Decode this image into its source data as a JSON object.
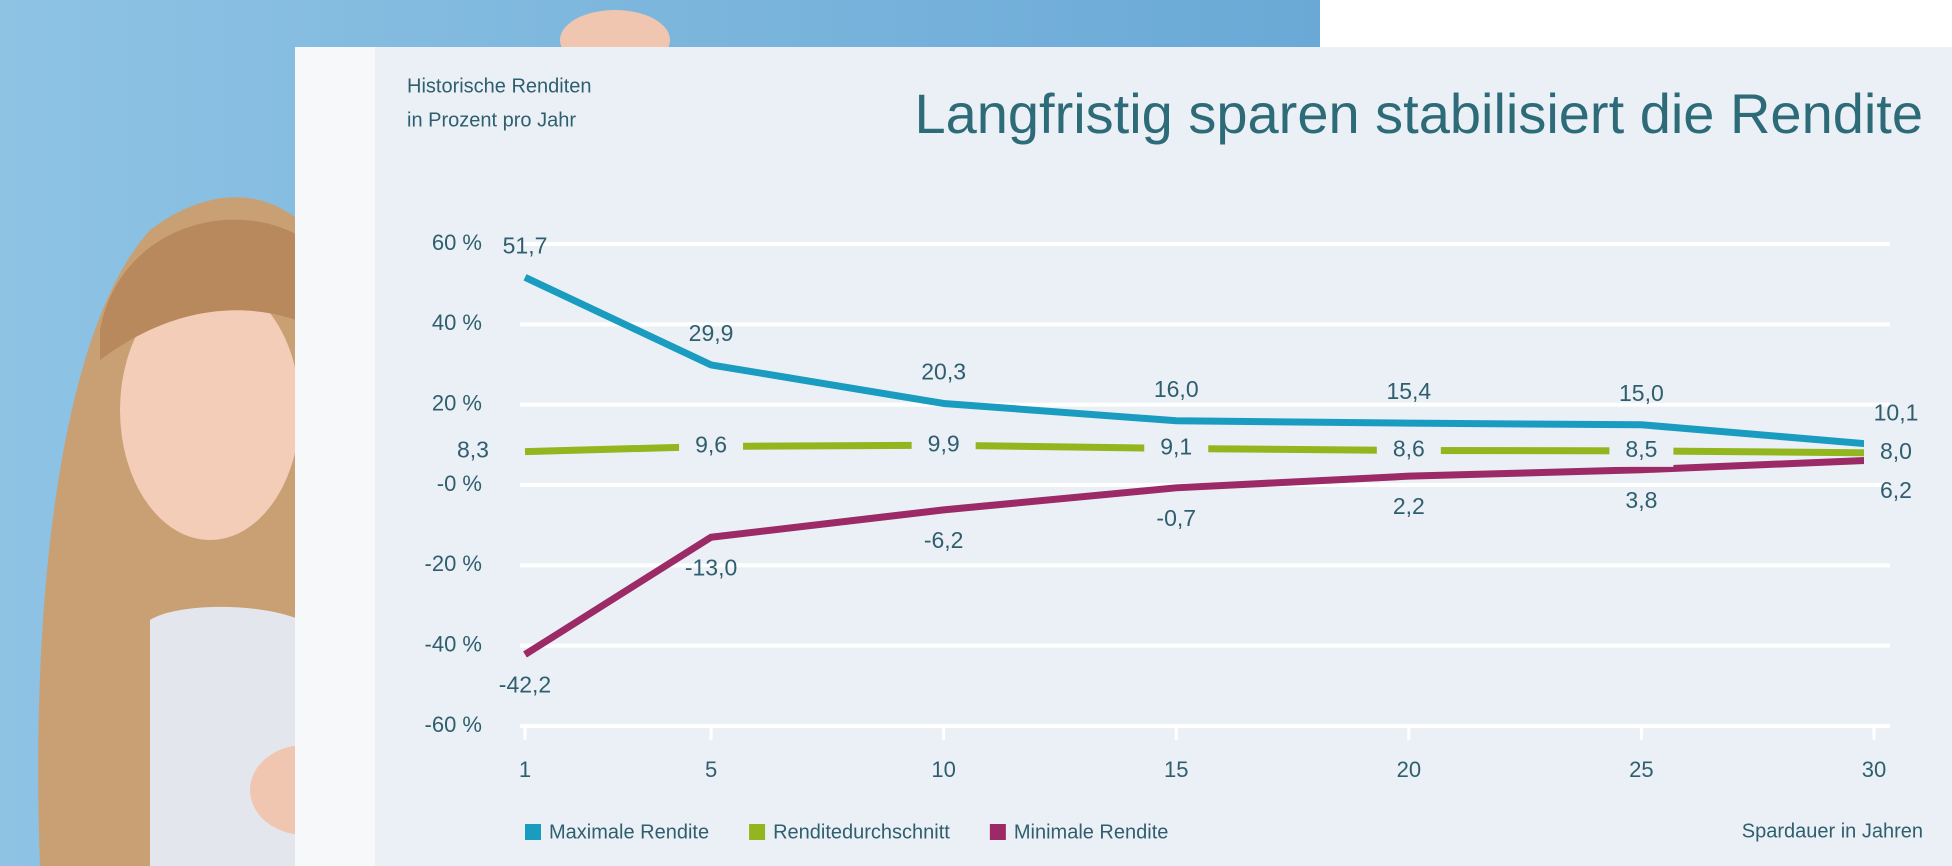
{
  "chart_data": {
    "type": "line",
    "title": "Langfristig sparen stabilisiert die Rendite",
    "ylabel_lines": [
      "Historische Renditen",
      "in Prozent pro Jahr"
    ],
    "xlabel": "Spardauer in Jahren",
    "x": [
      1,
      5,
      10,
      15,
      20,
      25,
      30
    ],
    "xlim": [
      1,
      30
    ],
    "xticks": [
      1,
      5,
      10,
      15,
      20,
      25,
      30
    ],
    "ylim": [
      -60,
      60
    ],
    "yticks": [
      {
        "value": 60,
        "label": "60 %"
      },
      {
        "value": 40,
        "label": "40 %"
      },
      {
        "value": 20,
        "label": "20 %"
      },
      {
        "value": 0,
        "label": "-0 %"
      },
      {
        "value": -20,
        "label": "-20 %"
      },
      {
        "value": -40,
        "label": "-40 %"
      },
      {
        "value": -60,
        "label": "-60 %"
      }
    ],
    "grid": true,
    "legend": "bottom-left",
    "series": [
      {
        "name": "Maximale Rendite",
        "color": "#1a9cc0",
        "label_position": "above",
        "values": [
          51.7,
          29.9,
          20.3,
          16.0,
          15.4,
          15.0,
          10.1
        ],
        "value_labels": [
          "51,7",
          "29,9",
          "20,3",
          "16,0",
          "15,4",
          "15,0",
          "10,1"
        ]
      },
      {
        "name": "Renditedurchschnitt",
        "color": "#93b51e",
        "label_position": "on",
        "values": [
          8.3,
          9.6,
          9.9,
          9.1,
          8.6,
          8.5,
          8.0
        ],
        "value_labels": [
          "8,3",
          "9,6",
          "9,9",
          "9,1",
          "8,6",
          "8,5",
          "8,0"
        ]
      },
      {
        "name": "Minimale Rendite",
        "color": "#9b2a66",
        "label_position": "below",
        "values": [
          -42.2,
          -13.0,
          -6.2,
          -0.7,
          2.2,
          3.8,
          6.2
        ],
        "value_labels": [
          "-42,2",
          "-13,0",
          "-6,2",
          "-0,7",
          "2,2",
          "3,8",
          "6,2"
        ]
      }
    ]
  }
}
